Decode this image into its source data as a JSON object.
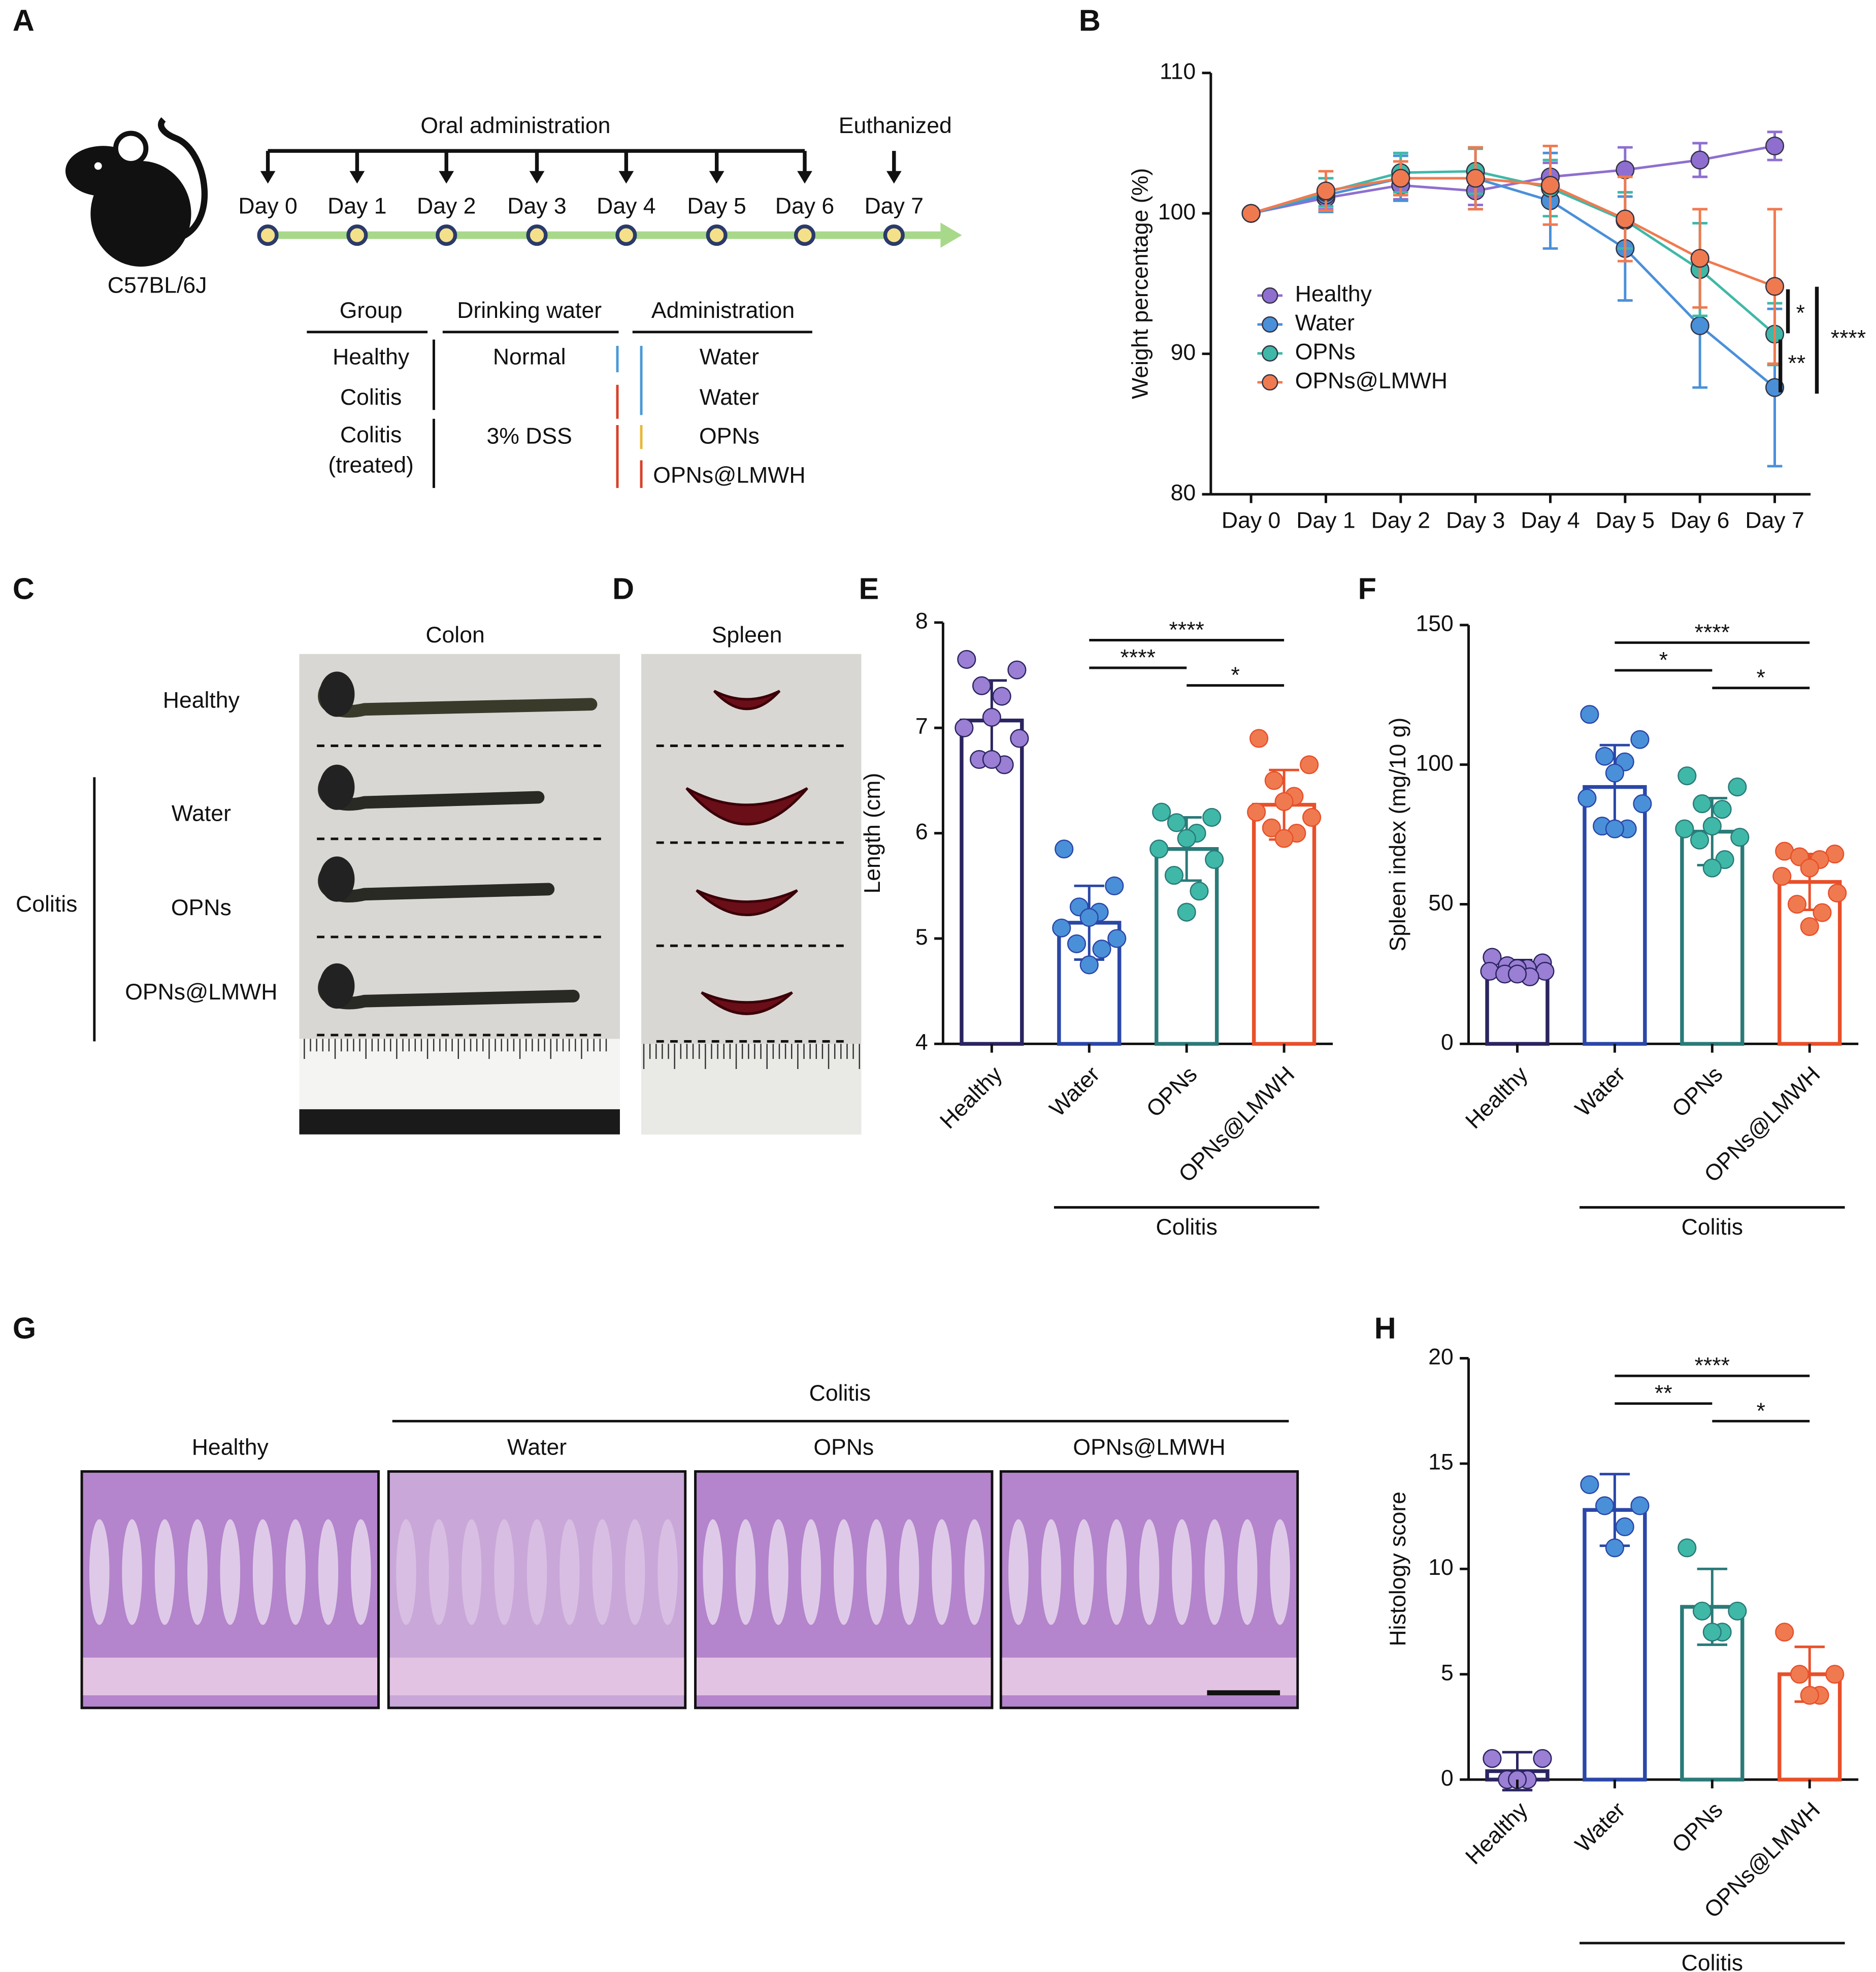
{
  "panel_a": {
    "label": "A",
    "strain": "C57BL/6J",
    "oral": "Oral administration",
    "euthanized": "Euthanized",
    "days": [
      "Day 0",
      "Day 1",
      "Day 2",
      "Day 3",
      "Day 4",
      "Day 5",
      "Day 6",
      "Day 7"
    ],
    "table": {
      "header": [
        "Group",
        "Drinking water",
        "Administration"
      ],
      "groups": [
        [
          "Healthy"
        ],
        [
          "Colitis"
        ],
        [
          "Colitis",
          "(treated)"
        ]
      ],
      "drinking": [
        "Normal",
        "3% DSS"
      ],
      "administration": [
        "Water",
        "Water",
        "OPNs",
        "OPNs@LMWH"
      ]
    }
  },
  "panel_c": {
    "label": "C",
    "title": "Colon",
    "rows": [
      "Healthy",
      "Water",
      "OPNs",
      "OPNs@LMWH"
    ],
    "group": "Colitis"
  },
  "panel_d": {
    "label": "D",
    "title": "Spleen"
  },
  "panel_g": {
    "label": "G",
    "group": "Colitis",
    "columns": [
      "Healthy",
      "Water",
      "OPNs",
      "OPNs@LMWH"
    ]
  },
  "chart_data": [
    {
      "type": "line",
      "panel_label": "B",
      "ylabel": "Weight percentage (%)",
      "categories": [
        "Day 0",
        "Day 1",
        "Day 2",
        "Day 3",
        "Day 4",
        "Day 5",
        "Day 6",
        "Day 7"
      ],
      "ylim": [
        80,
        110
      ],
      "yticks": [
        80,
        90,
        100,
        110
      ],
      "grid": false,
      "legend": "left",
      "series": [
        {
          "name": "Healthy",
          "color": "#8e6fd0",
          "values": [
            100,
            101.1,
            102.0,
            101.6,
            102.6,
            103.1,
            103.8,
            104.8
          ],
          "errors": [
            0,
            0.8,
            1.0,
            1.0,
            1.0,
            1.6,
            1.2,
            1.0
          ]
        },
        {
          "name": "Water",
          "color": "#4a90d9",
          "values": [
            100,
            101.3,
            102.5,
            102.5,
            100.9,
            97.5,
            92.0,
            87.6
          ],
          "errors": [
            0,
            1.2,
            1.6,
            2.2,
            3.4,
            3.7,
            4.4,
            5.6
          ]
        },
        {
          "name": "OPNs",
          "color": "#3fb8a8",
          "values": [
            100,
            101.5,
            102.9,
            103.0,
            101.8,
            99.5,
            96.0,
            91.4
          ],
          "errors": [
            0,
            1.0,
            1.4,
            1.6,
            2.0,
            2.0,
            3.3,
            2.2
          ]
        },
        {
          "name": "OPNs@LMWH",
          "color": "#f07a50",
          "values": [
            100,
            101.6,
            102.5,
            102.5,
            102.0,
            99.6,
            96.8,
            94.8
          ],
          "errors": [
            0,
            1.4,
            1.2,
            2.2,
            2.8,
            3.0,
            3.5,
            5.5
          ]
        }
      ],
      "annotations": [
        "*",
        "**",
        "****"
      ]
    },
    {
      "type": "bar",
      "panel_label": "E",
      "ylabel": "Length (cm)",
      "categories": [
        "Healthy",
        "Water",
        "OPNs",
        "OPNs@LMWH"
      ],
      "values": [
        7.07,
        5.15,
        5.85,
        6.27
      ],
      "errors": [
        0.38,
        0.35,
        0.3,
        0.33
      ],
      "points": [
        [
          7.65,
          7.55,
          7.4,
          7.3,
          7.1,
          7.0,
          6.9,
          6.7,
          6.65,
          6.7
        ],
        [
          5.85,
          5.5,
          5.3,
          5.25,
          5.2,
          5.1,
          5.0,
          4.95,
          4.9,
          4.75
        ],
        [
          6.2,
          6.15,
          6.1,
          6.0,
          5.95,
          5.85,
          5.75,
          5.6,
          5.45,
          5.25
        ],
        [
          6.9,
          6.65,
          6.5,
          6.35,
          6.3,
          6.2,
          6.15,
          6.05,
          6.0,
          5.95
        ]
      ],
      "colors": [
        "#9b7fd4",
        "#4a90d9",
        "#3fb8a8",
        "#f07a50"
      ],
      "edge_colors": [
        "#2a2560",
        "#2a47a8",
        "#2a7a78",
        "#e8502a"
      ],
      "ylim": [
        4,
        8
      ],
      "yticks": [
        4,
        5,
        6,
        7,
        8
      ],
      "grid": false,
      "group_label": "Colitis",
      "significance": [
        "****",
        "****",
        "*"
      ]
    },
    {
      "type": "bar",
      "panel_label": "F",
      "ylabel": "Spleen index (mg/10 g)",
      "categories": [
        "Healthy",
        "Water",
        "OPNs",
        "OPNs@LMWH"
      ],
      "values": [
        27,
        92,
        76,
        58
      ],
      "errors": [
        3,
        15,
        12,
        10
      ],
      "points": [
        [
          31,
          29,
          28,
          27,
          27,
          26,
          26,
          25,
          24,
          25
        ],
        [
          118,
          109,
          103,
          101,
          97,
          88,
          86,
          78,
          77,
          77
        ],
        [
          96,
          92,
          86,
          84,
          78,
          77,
          74,
          73,
          66,
          63
        ],
        [
          69,
          68,
          67,
          66,
          63,
          60,
          54,
          50,
          47,
          42
        ]
      ],
      "colors": [
        "#9b7fd4",
        "#4a90d9",
        "#3fb8a8",
        "#f07a50"
      ],
      "edge_colors": [
        "#2a2560",
        "#2a47a8",
        "#2a7a78",
        "#e8502a"
      ],
      "ylim": [
        0,
        150
      ],
      "yticks": [
        0,
        50,
        100,
        150
      ],
      "grid": false,
      "group_label": "Colitis",
      "significance": [
        "****",
        "*",
        "*"
      ]
    },
    {
      "type": "bar",
      "panel_label": "H",
      "ylabel": "Histology score",
      "categories": [
        "Healthy",
        "Water",
        "OPNs",
        "OPNs@LMWH"
      ],
      "values": [
        0.4,
        12.8,
        8.2,
        5.0
      ],
      "errors": [
        0.9,
        1.7,
        1.8,
        1.3
      ],
      "points": [
        [
          1,
          1,
          0,
          0,
          0
        ],
        [
          14,
          13,
          13,
          12,
          11
        ],
        [
          11,
          8,
          8,
          7,
          7
        ],
        [
          7,
          5,
          5,
          4,
          4
        ]
      ],
      "colors": [
        "#9b7fd4",
        "#4a90d9",
        "#3fb8a8",
        "#f07a50"
      ],
      "edge_colors": [
        "#2a2560",
        "#2a47a8",
        "#2a7a78",
        "#e8502a"
      ],
      "ylim": [
        0,
        20
      ],
      "yticks": [
        0,
        5,
        10,
        15,
        20
      ],
      "grid": false,
      "group_label": "Colitis",
      "significance": [
        "****",
        "**",
        "*"
      ]
    }
  ]
}
